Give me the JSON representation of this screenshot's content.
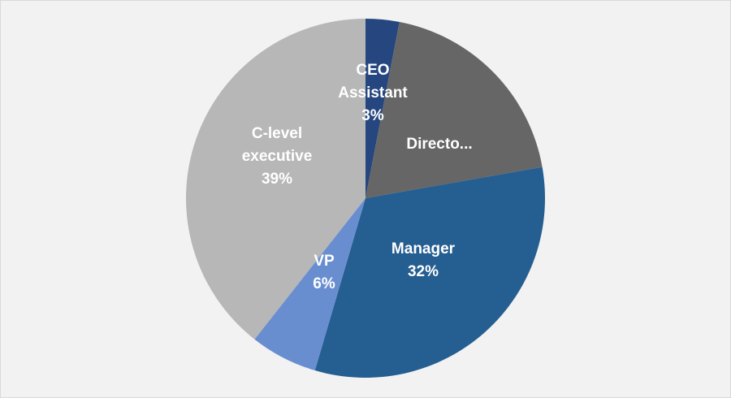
{
  "chart_data": {
    "type": "pie",
    "title": "",
    "start_angle_deg": 0,
    "direction": "clockwise",
    "slices": [
      {
        "label": [
          "CEO",
          "Assistant"
        ],
        "value": 3,
        "value_label": "3%",
        "color": "#25467e"
      },
      {
        "label": [
          "Directo..."
        ],
        "value": 19,
        "value_label": "",
        "color": "#666666"
      },
      {
        "label": [
          "Manager"
        ],
        "value": 32,
        "value_label": "32%",
        "color": "#255e91"
      },
      {
        "label": [
          "VP"
        ],
        "value": 6,
        "value_label": "6%",
        "color": "#698ed0"
      },
      {
        "label": [
          "C-level",
          "executive"
        ],
        "value": 39,
        "value_label": "39%",
        "color": "#b7b7b7"
      }
    ]
  }
}
